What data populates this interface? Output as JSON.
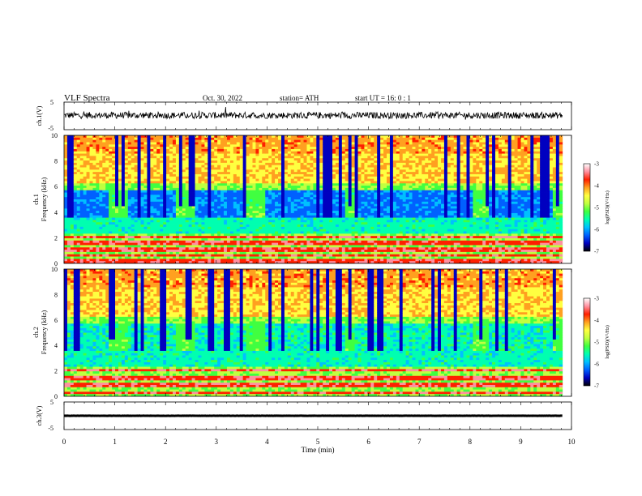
{
  "header": {
    "title": "VLF  Spectra",
    "date": "Oct. 30, 2022",
    "station": "station= ATH",
    "start": "start  UT  =    16: 0   : 1"
  },
  "colors": {
    "scale": [
      "#000000",
      "#0000c0",
      "#0060ff",
      "#00c0ff",
      "#00ffb0",
      "#40ff40",
      "#c0ff40",
      "#ffff40",
      "#ffa020",
      "#ff2000",
      "#ff90a0",
      "#ffffff"
    ]
  },
  "chart_data": [
    {
      "type": "line",
      "name": "ch1-waveform",
      "ylabel": "ch.1(V)",
      "yticks": [
        "5",
        "-5"
      ],
      "ylim": [
        -5,
        5
      ],
      "xlim": [
        0,
        10
      ],
      "data_end_min": 9.82,
      "mean_v": 0.2,
      "amplitude_v": 1.2
    },
    {
      "type": "heatmap",
      "name": "ch1-spectrogram",
      "ylabel_top": "ch.1",
      "ylabel": "Frequency  (kHz)",
      "yticks": [
        "10",
        "8",
        "6",
        "4",
        "2",
        "0"
      ],
      "ylim_khz": [
        0,
        10
      ],
      "xlim_min": [
        0,
        10
      ],
      "data_end_min": 9.82,
      "colorbar": {
        "label": "log(PSD)(V²/Hz)",
        "ticks": [
          "-3",
          "-4",
          "-5",
          "-6",
          "-7"
        ],
        "range": [
          -7,
          -3
        ]
      },
      "quiet_intervals_min": [
        [
          0.9,
          1.25
        ],
        [
          2.2,
          2.55
        ],
        [
          3.6,
          3.95
        ],
        [
          5.55,
          5.75
        ],
        [
          8.05,
          8.4
        ],
        [
          9.6,
          9.8
        ]
      ],
      "strong_bands_khz": [
        2.1,
        1.6,
        1.1,
        0.6,
        0.2
      ]
    },
    {
      "type": "heatmap",
      "name": "ch2-spectrogram",
      "ylabel_top": "ch.2",
      "ylabel": "Frequency  (kHz)",
      "yticks": [
        "10",
        "8",
        "6",
        "4",
        "2",
        "0"
      ],
      "ylim_khz": [
        0,
        10
      ],
      "xlim_min": [
        0,
        10
      ],
      "data_end_min": 9.82,
      "colorbar": {
        "label": "log(PSD)(V²/Hz)",
        "ticks": [
          "-3",
          "-4",
          "-5",
          "-6",
          "-7"
        ],
        "range": [
          -7,
          -3
        ]
      },
      "quiet_intervals_min": [
        [
          0.9,
          1.25
        ],
        [
          2.2,
          2.55
        ],
        [
          3.6,
          3.95
        ],
        [
          5.55,
          5.75
        ],
        [
          8.05,
          8.4
        ],
        [
          9.6,
          9.8
        ]
      ],
      "strong_bands_khz": [
        2.0,
        1.4,
        0.9,
        0.3
      ]
    },
    {
      "type": "line",
      "name": "ch3-waveform",
      "ylabel": "ch.3(V)",
      "yticks": [
        "5",
        "-5"
      ],
      "ylim": [
        -5,
        5
      ],
      "xlim": [
        0,
        10
      ],
      "data_end_min": 9.82,
      "mean_v": 0.0,
      "amplitude_v": 0.15,
      "xlabel": "Time  (min)",
      "xticks": [
        "0",
        "1",
        "2",
        "3",
        "4",
        "5",
        "6",
        "7",
        "8",
        "9",
        "10"
      ]
    }
  ]
}
